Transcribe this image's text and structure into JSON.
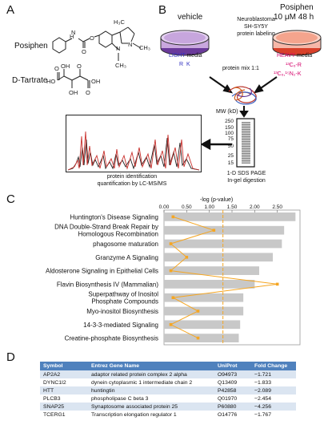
{
  "panel_a": {
    "letter": "A",
    "posiphen_label": "Posiphen",
    "tartrate_label": "D-Tartrate",
    "struct_text": {
      "h3c": "H₃C",
      "n": "N",
      "ch3": "CH₃",
      "o": "O",
      "h": "H",
      "oh": "OH",
      "ho": "HO"
    }
  },
  "panel_b": {
    "letter": "B",
    "vehicle_label": "vehicle",
    "center_lines": [
      "Neuroblastoma",
      "SH-SY5Y",
      "protein labeling"
    ],
    "posiphen_title": "Posiphen",
    "posiphen_dose": "10 μM 48 h",
    "light_word": "LIGHT",
    "media_word": "media",
    "heavy_word": "HEAVY",
    "light_aa": "R  K",
    "heavy_r": "¹³C₆-R",
    "heavy_k": "¹³C₆,¹⁵N₂-K",
    "protein_mix": "protein mix 1:1",
    "mw_label": "MW (kD)",
    "mw_ticks": [
      "250",
      "150",
      "100",
      "75",
      "50",
      "25",
      "15"
    ],
    "gel_caption": [
      "1-D SDS PAGE",
      "In-gel digestion"
    ],
    "ms_caption": [
      "protein identification",
      "quantification by LC-MS/MS"
    ],
    "colors": {
      "light": "#3030c0",
      "heavy": "#d4006a",
      "dish_light": "#7a4aa8",
      "dish_heavy": "#e8452c"
    }
  },
  "panel_c": {
    "letter": "C"
  },
  "chart_data": {
    "type": "bar",
    "title": "-log (p-value)",
    "xlim": [
      0,
      3.0
    ],
    "xticks": [
      "0.00",
      "0.50",
      "1.00",
      "1.50",
      "2.00",
      "2.50"
    ],
    "categories": [
      "Huntington's Disease Signaling",
      "DNA Double-Strand Break Repair by Homologous Recombination",
      "phagosome maturation",
      "Granzyme A Signaling",
      "Aldosterone Signaling in Epithelial Cells",
      "Flavin Biosynthesis IV (Mammalian)",
      "Superpathway of Inositol Phosphate Compounds",
      "Myo-inositol Biosynthesis",
      "14-3-3-mediated Signaling",
      "Creatine-phosphate Biosynthesis"
    ],
    "label_lines": [
      [
        "Huntington's Disease Signaling"
      ],
      [
        "DNA Double-Strand Break Repair by",
        "Homologous Recombination"
      ],
      [
        "phagosome maturation"
      ],
      [
        "Granzyme A Signaling"
      ],
      [
        "Aldosterone Signaling in Epithelial Cells"
      ],
      [
        "Flavin Biosynthesis IV (Mammalian)"
      ],
      [
        "Superpathway of Inositol",
        "Phosphate Compounds"
      ],
      [
        "Myo-inositol Biosynthesis"
      ],
      [
        "14-3-3-mediated Signaling"
      ],
      [
        "Creatine-phosphate Biosynthesis"
      ]
    ],
    "values": [
      2.9,
      2.65,
      2.6,
      2.4,
      2.1,
      2.0,
      1.75,
      1.75,
      1.68,
      1.65
    ],
    "ratio": [
      0.04,
      0.22,
      0.03,
      0.1,
      0.03,
      0.5,
      0.04,
      0.15,
      0.03,
      0.15
    ],
    "ratio_scale_max": 0.6,
    "threshold": 1.3,
    "colors": {
      "bar": "#c8c8c8",
      "ratio_line": "#f5a623",
      "threshold": "#f5a623"
    }
  },
  "panel_d": {
    "letter": "D",
    "headers": [
      "Symbol",
      "Entrez Gene Name",
      "UniProt",
      "Fold Change"
    ],
    "rows": [
      [
        "AP2A2",
        "adaptor related protein complex 2 alpha",
        "O94973",
        "−1.721"
      ],
      [
        "DYNC1I2",
        "dynein cytoplasmic 1 intermediate chain 2",
        "Q13409",
        "−1.833"
      ],
      [
        "HTT",
        "huntingtin",
        "P42858",
        "−2.089"
      ],
      [
        "PLCB3",
        "phospholipase C beta 3",
        "Q01970",
        "−2.454"
      ],
      [
        "SNAP25",
        "Synaptosome associated protein 25",
        "P60880",
        "−4.256"
      ],
      [
        "TCERG1",
        "Transcription elongation regulator 1",
        "O14776",
        "−1.767"
      ]
    ]
  }
}
